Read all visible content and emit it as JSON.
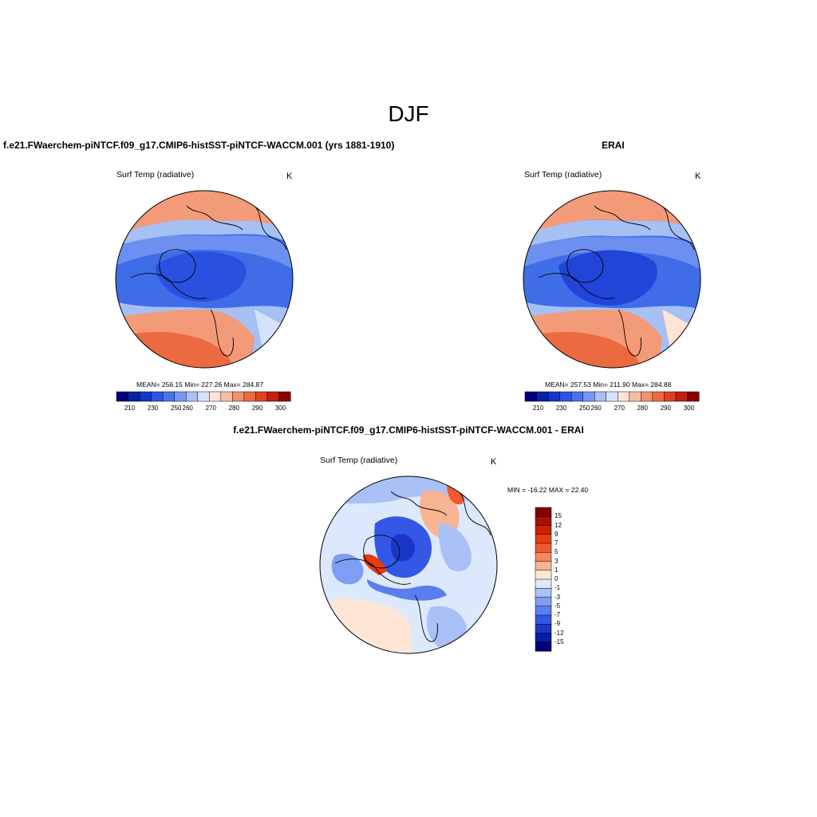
{
  "main_title": "DJF",
  "panels": {
    "left": {
      "title": "f.e21.FWaerchem-piNTCF.f09_g17.CMIP6-histSST-piNTCF-WACCM.001 (yrs 1881-1910)",
      "variable": "Surf Temp (radiative)",
      "units": "K",
      "stats": "MEAN= 256.15  Min= 227.26  Max= 284.87"
    },
    "right": {
      "title": "ERAI",
      "variable": "Surf Temp (radiative)",
      "units": "K",
      "stats": "MEAN= 257.53  Min= 211.90  Max= 284.88"
    },
    "diff": {
      "title": "f.e21.FWaerchem-piNTCF.f09_g17.CMIP6-histSST-piNTCF-WACCM.001 - ERAI",
      "variable": "Surf Temp (radiative)",
      "units": "K",
      "stats": "MIN = -16.22 MAX =  22.40"
    }
  },
  "colorbar_abs": {
    "ticks": [
      "210",
      "230",
      "250",
      "260",
      "270",
      "280",
      "290",
      "300"
    ],
    "colors": [
      "#00007f",
      "#0a1fa6",
      "#1236cc",
      "#2b54e6",
      "#4a72f0",
      "#7897f4",
      "#a9c0f6",
      "#d5e3fa",
      "#fde4d4",
      "#f8bea3",
      "#f39070",
      "#ec6a40",
      "#e24020",
      "#c22010",
      "#8a0000"
    ]
  },
  "colorbar_diff": {
    "ticks": [
      "15",
      "12",
      "9",
      "7",
      "5",
      "3",
      "1",
      "0",
      "-1",
      "-3",
      "-5",
      "-7",
      "-9",
      "-12",
      "-15"
    ],
    "colors": [
      "#7f0000",
      "#a81000",
      "#d02000",
      "#e83c10",
      "#f05a30",
      "#f3875e",
      "#f7b592",
      "#fde6d6",
      "#dce8fb",
      "#a9c1f6",
      "#7e9ef4",
      "#5a7df0",
      "#3358e6",
      "#1a36c8",
      "#0a1ca0",
      "#000078"
    ]
  }
}
